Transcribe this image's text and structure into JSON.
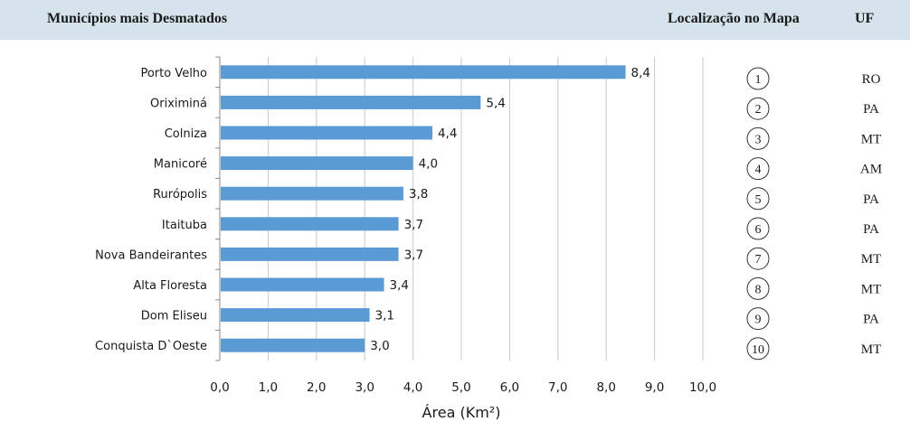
{
  "header": {
    "title": "Municípios mais Desmatados",
    "location_label": "Localização no Mapa",
    "uf_label": "UF"
  },
  "colors": {
    "bar": "#5b9bd5",
    "header_bg": "#d5e3ec",
    "grid": "#c8c8c8"
  },
  "chart_data": {
    "type": "bar",
    "orientation": "horizontal",
    "categories": [
      "Porto Velho",
      "Oriximiná",
      "Colniza",
      "Manicoré",
      "Rurópolis",
      "Itaituba",
      "Nova Bandeirantes",
      "Alta Floresta",
      "Dom Eliseu",
      "Conquista D`Oeste"
    ],
    "values": [
      8.4,
      5.4,
      4.4,
      4.0,
      3.8,
      3.7,
      3.7,
      3.4,
      3.1,
      3.0
    ],
    "value_labels": [
      "8,4",
      "5,4",
      "4,4",
      "4,0",
      "3,8",
      "3,7",
      "3,7",
      "3,4",
      "3,1",
      "3,0"
    ],
    "xlabel": "Área (Km²)",
    "xlim": [
      0,
      10
    ],
    "xticks": [
      "0,0",
      "1,0",
      "2,0",
      "3,0",
      "4,0",
      "5,0",
      "6,0",
      "7,0",
      "8,0",
      "9,0",
      "10,0"
    ],
    "grid": true
  },
  "table": {
    "rows": [
      {
        "rank": "1",
        "uf": "RO"
      },
      {
        "rank": "2",
        "uf": "PA"
      },
      {
        "rank": "3",
        "uf": "MT"
      },
      {
        "rank": "4",
        "uf": "AM"
      },
      {
        "rank": "5",
        "uf": "PA"
      },
      {
        "rank": "6",
        "uf": "PA"
      },
      {
        "rank": "7",
        "uf": "MT"
      },
      {
        "rank": "8",
        "uf": "MT"
      },
      {
        "rank": "9",
        "uf": "PA"
      },
      {
        "rank": "10",
        "uf": "MT"
      }
    ]
  }
}
